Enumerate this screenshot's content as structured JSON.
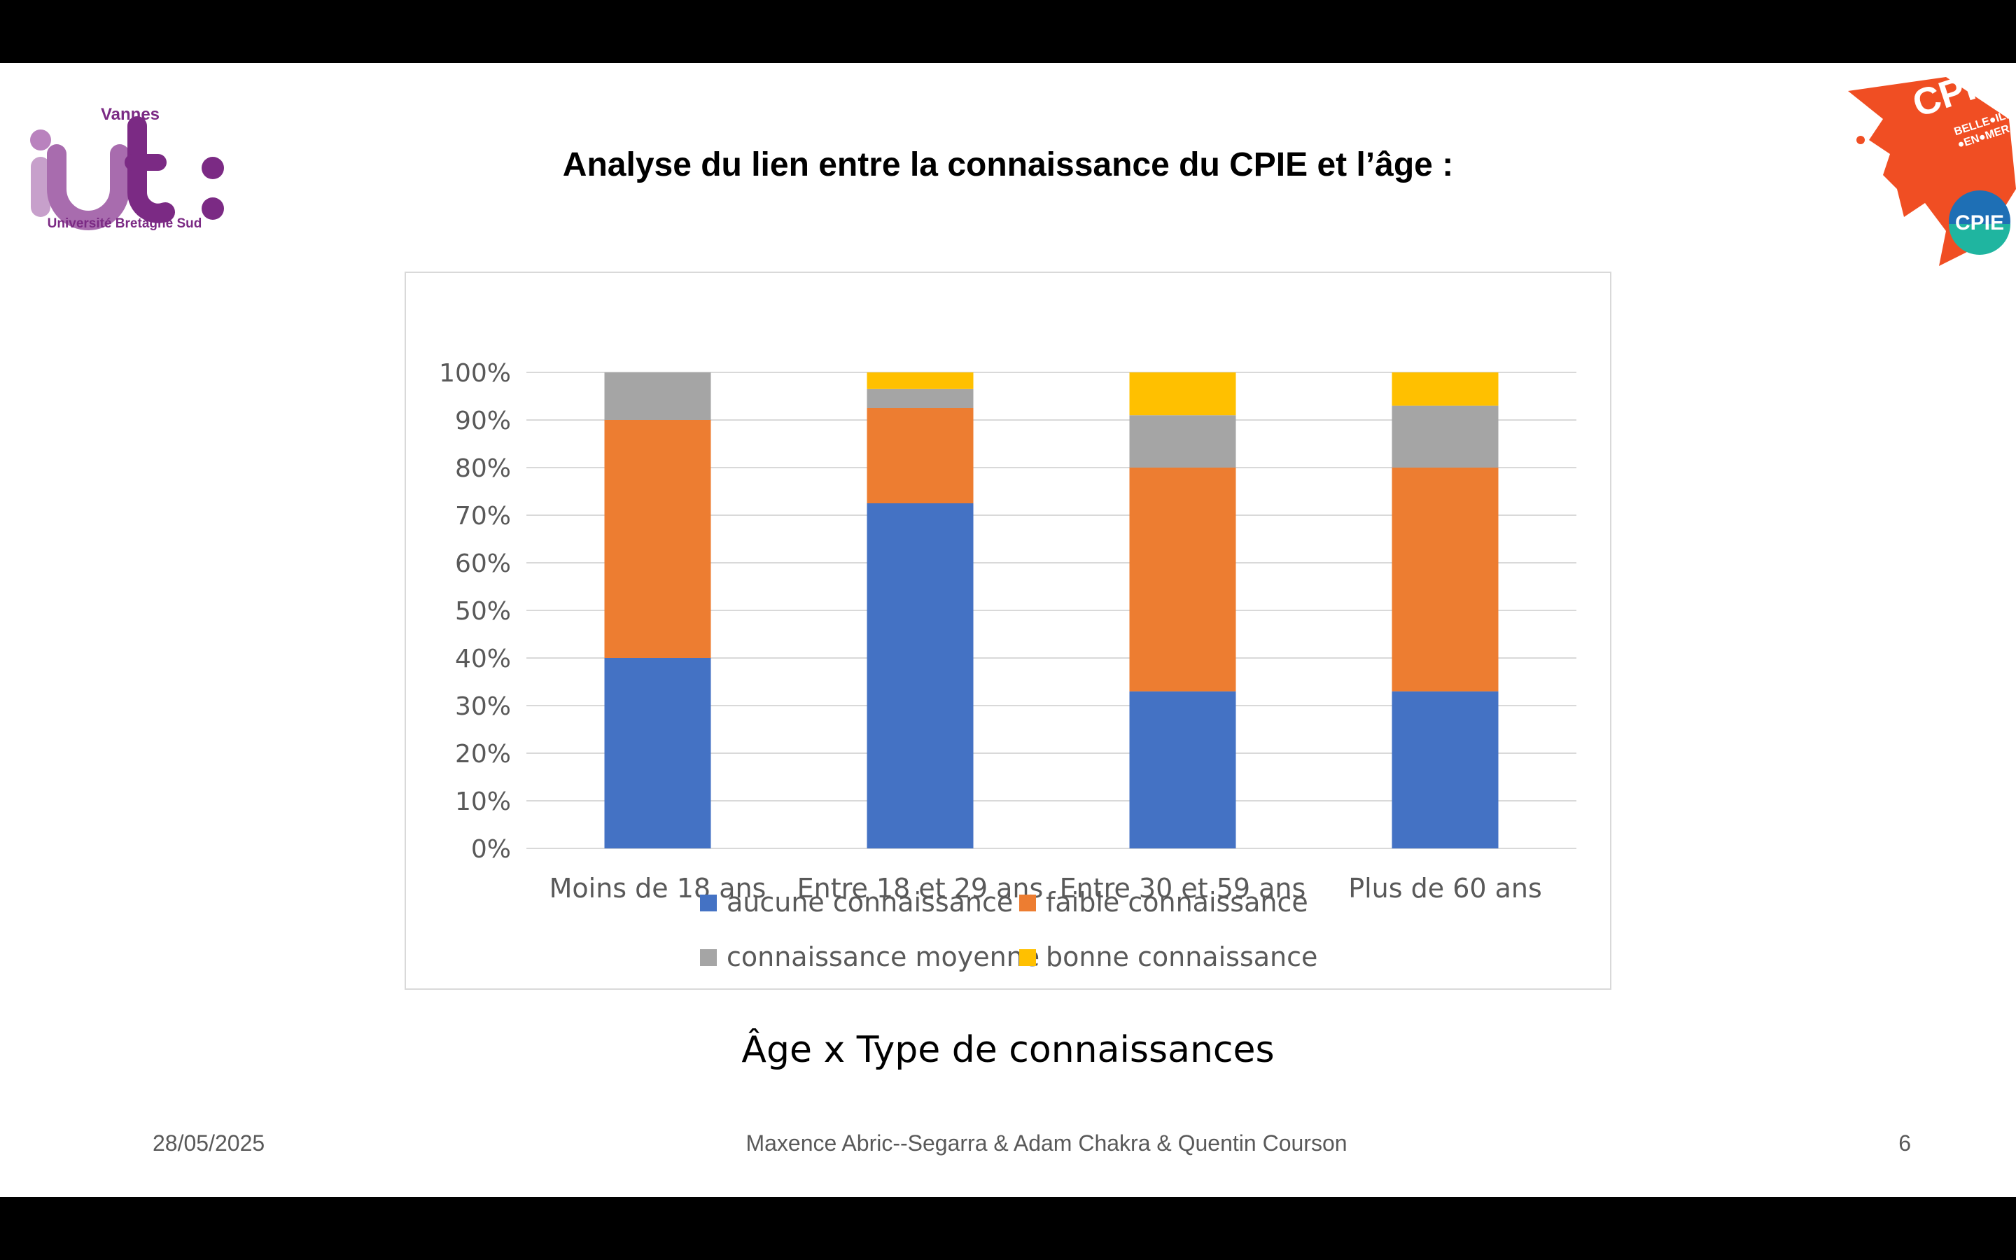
{
  "slide": {
    "title": "Analyse du lien entre la connaissance du CPIE et l’âge :",
    "caption": "Âge x Type de connaissances",
    "footer": {
      "date": "28/05/2025",
      "authors": "Maxence Abric--Segarra & Adam Chakra & Quentin Courson",
      "page": "6"
    }
  },
  "logos": {
    "iut": {
      "city": "Vannes",
      "mark": "iut :",
      "university": "Université Bretagne Sud",
      "color": "#7b2a84"
    },
    "cpie": {
      "name": "CPIE",
      "line1": "BELLE●ILE",
      "line2": "●EN●MER",
      "badge": "CPIE",
      "color": "#f04e23"
    }
  },
  "chart_data": {
    "type": "bar",
    "stacked": true,
    "percent": true,
    "categories": [
      "Moins de 18 ans",
      "Entre 18 et 29 ans",
      "Entre 30 et 59 ans",
      "Plus de 60 ans"
    ],
    "series": [
      {
        "name": "aucune connaissance",
        "color": "#4472c4",
        "values": [
          40,
          72.5,
          33,
          33
        ]
      },
      {
        "name": "faible connaissance",
        "color": "#ed7d31",
        "values": [
          50,
          20,
          47,
          47
        ]
      },
      {
        "name": "connaissance moyenne",
        "color": "#a5a5a5",
        "values": [
          10,
          4,
          11,
          13
        ]
      },
      {
        "name": "bonne connaissance",
        "color": "#ffc000",
        "values": [
          0,
          3.5,
          9,
          7
        ]
      }
    ],
    "yticks": [
      "0%",
      "10%",
      "20%",
      "30%",
      "40%",
      "50%",
      "60%",
      "70%",
      "80%",
      "90%",
      "100%"
    ],
    "ylim": [
      0,
      100
    ],
    "grid": true,
    "legend_position": "bottom"
  }
}
